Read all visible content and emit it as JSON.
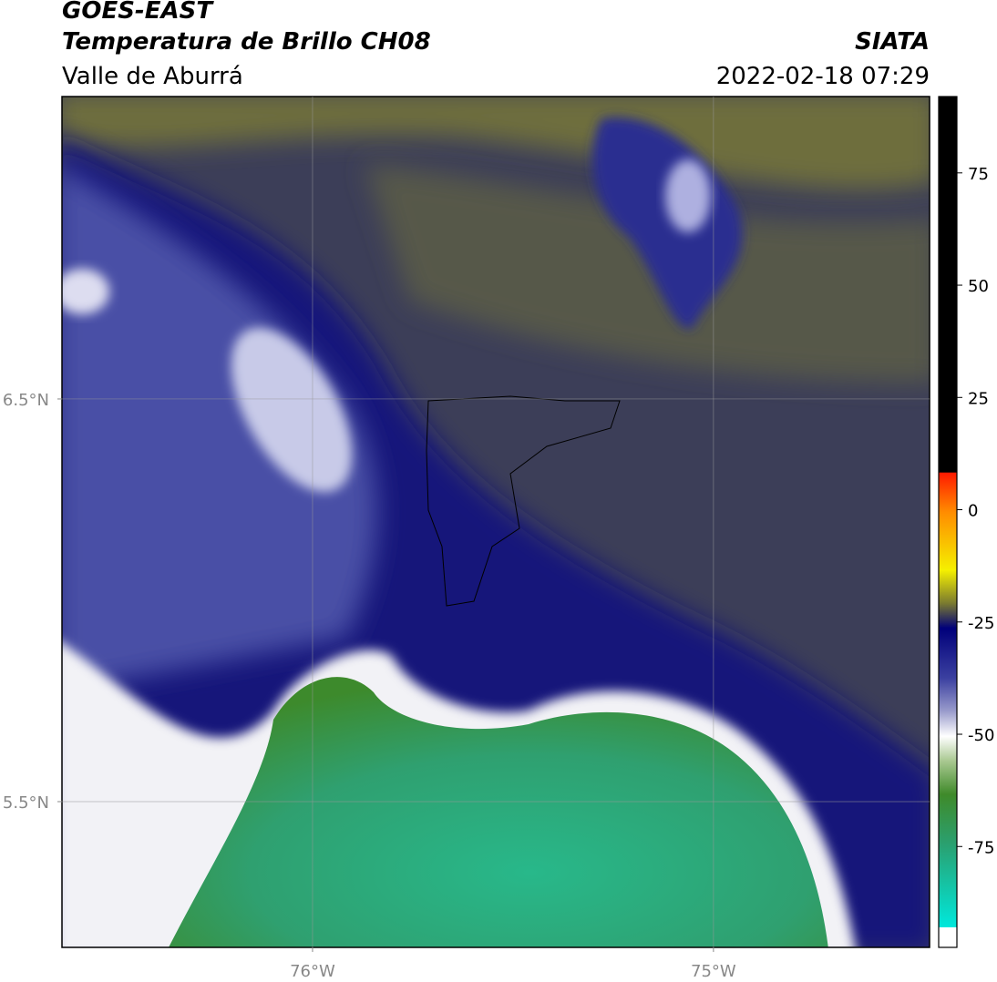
{
  "header": {
    "line1": "GOES-EAST",
    "line2": "Temperatura de Brillo CH08",
    "line3": "Valle de Aburrá",
    "agency": "SIATA",
    "datetime": "2022-02-18 07:29"
  },
  "map": {
    "xlim": [
      -76.625,
      -74.461
    ],
    "ylim": [
      5.138,
      7.251
    ],
    "xticks": [
      {
        "value": -76,
        "label": "76°W"
      },
      {
        "value": -75,
        "label": "75°W"
      }
    ],
    "yticks": [
      {
        "value": 6.5,
        "label": "6.5°N"
      },
      {
        "value": 5.5,
        "label": "5.5°N"
      }
    ]
  },
  "colorbar": {
    "lim": [
      -93,
      92
    ],
    "ticks": [
      75,
      50,
      25,
      0,
      -25,
      -50,
      -75
    ]
  }
}
